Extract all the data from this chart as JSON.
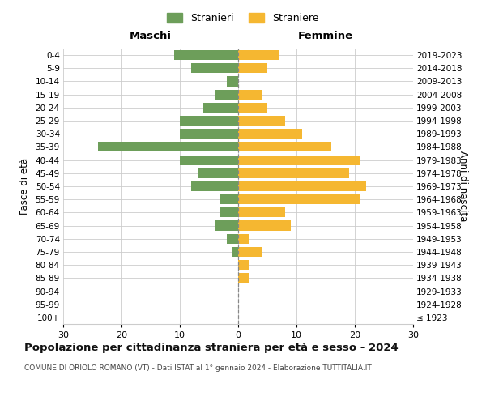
{
  "age_groups": [
    "100+",
    "95-99",
    "90-94",
    "85-89",
    "80-84",
    "75-79",
    "70-74",
    "65-69",
    "60-64",
    "55-59",
    "50-54",
    "45-49",
    "40-44",
    "35-39",
    "30-34",
    "25-29",
    "20-24",
    "15-19",
    "10-14",
    "5-9",
    "0-4"
  ],
  "birth_years": [
    "≤ 1923",
    "1924-1928",
    "1929-1933",
    "1934-1938",
    "1939-1943",
    "1944-1948",
    "1949-1953",
    "1954-1958",
    "1959-1963",
    "1964-1968",
    "1969-1973",
    "1974-1978",
    "1979-1983",
    "1984-1988",
    "1989-1993",
    "1994-1998",
    "1999-2003",
    "2004-2008",
    "2009-2013",
    "2014-2018",
    "2019-2023"
  ],
  "maschi": [
    0,
    0,
    0,
    0,
    0,
    1,
    2,
    4,
    3,
    3,
    8,
    7,
    10,
    24,
    10,
    10,
    6,
    4,
    2,
    8,
    11
  ],
  "femmine": [
    0,
    0,
    0,
    2,
    2,
    4,
    2,
    9,
    8,
    21,
    22,
    19,
    21,
    16,
    11,
    8,
    5,
    4,
    0,
    5,
    7
  ],
  "color_maschi": "#6d9e5a",
  "color_femmine": "#f5b731",
  "title": "Popolazione per cittadinanza straniera per età e sesso - 2024",
  "subtitle": "COMUNE DI ORIOLO ROMANO (VT) - Dati ISTAT al 1° gennaio 2024 - Elaborazione TUTTITALIA.IT",
  "xlabel_left": "Maschi",
  "xlabel_right": "Femmine",
  "ylabel_left": "Fasce di età",
  "ylabel_right": "Anni di nascita",
  "legend_maschi": "Stranieri",
  "legend_femmine": "Straniere",
  "xlim": 30,
  "background_color": "#ffffff",
  "grid_color": "#cccccc",
  "centerline_color": "#888888"
}
